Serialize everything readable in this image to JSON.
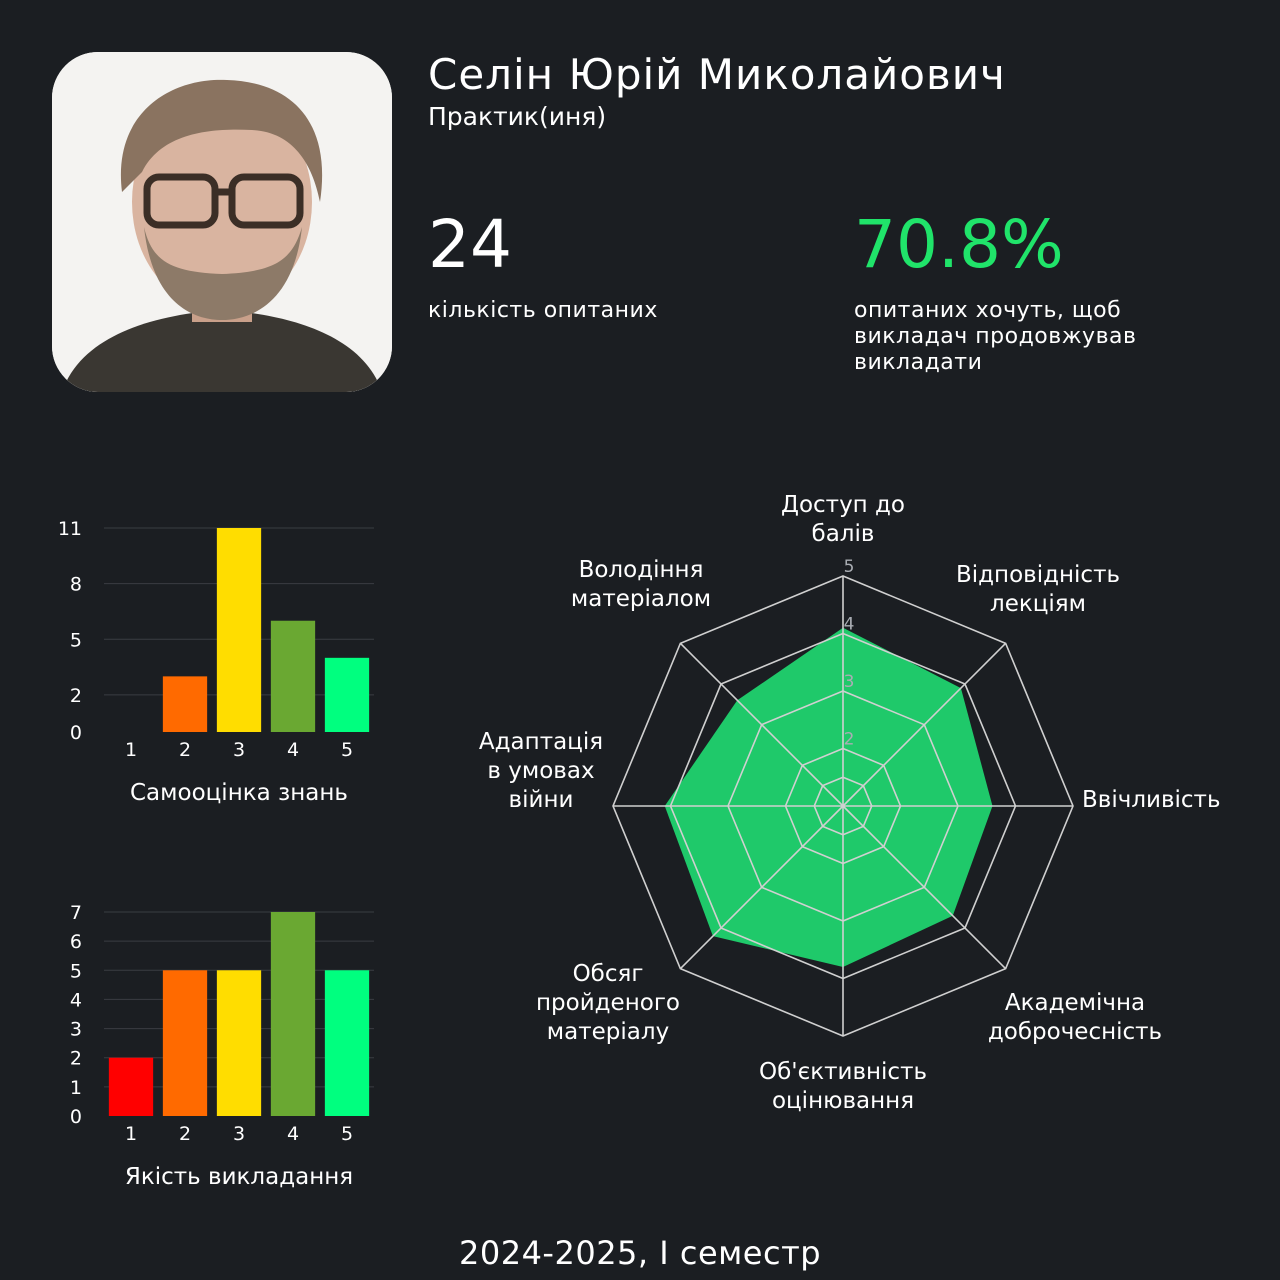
{
  "profile": {
    "name": "Селін Юрій Миколайович",
    "role": "Практик(иня)"
  },
  "stats": {
    "respondents_value": "24",
    "respondents_label": "кількість опитаних",
    "continue_value": "70.8%",
    "continue_label": "опитаних хочуть, щоб викладач продовжував викладати"
  },
  "footer": "2024-2025, I семестр",
  "colors": {
    "background": "#1b1e22",
    "accent": "#20e46a",
    "radar_fill": "#1fc96a",
    "bar_colors": [
      "#ff0000",
      "#ff6a00",
      "#ffdd00",
      "#6aa832",
      "#00ff7f"
    ]
  },
  "chart_data": [
    {
      "type": "bar",
      "title": "Самооцінка знань",
      "categories": [
        "1",
        "2",
        "3",
        "4",
        "5"
      ],
      "values": [
        0,
        3,
        11,
        6,
        4
      ],
      "yticks": [
        "0",
        "2",
        "5",
        "8",
        "11"
      ],
      "ylim": [
        0,
        11
      ],
      "grid": true
    },
    {
      "type": "bar",
      "title": "Якість викладання",
      "categories": [
        "1",
        "2",
        "3",
        "4",
        "5"
      ],
      "values": [
        2,
        5,
        5,
        7,
        5
      ],
      "yticks": [
        "0",
        "1",
        "2",
        "3",
        "4",
        "5",
        "6",
        "7"
      ],
      "ylim": [
        0,
        7
      ],
      "grid": true
    },
    {
      "type": "radar",
      "axes": [
        "Доступ до балів",
        "Відповідність лекціям",
        "Ввічливість",
        "Академічна доброчесність",
        "Об'єктивність оцінювання",
        "Обсяг пройденого матеріалу",
        "Адаптація в умовах війни",
        "Володіння матеріалом"
      ],
      "values": [
        4.1,
        3.9,
        3.6,
        3.7,
        3.8,
        4.2,
        4.1,
        3.6
      ],
      "rlim": [
        1,
        5
      ],
      "rticks": [
        "2",
        "3",
        "4",
        "5"
      ],
      "grid": true
    }
  ]
}
